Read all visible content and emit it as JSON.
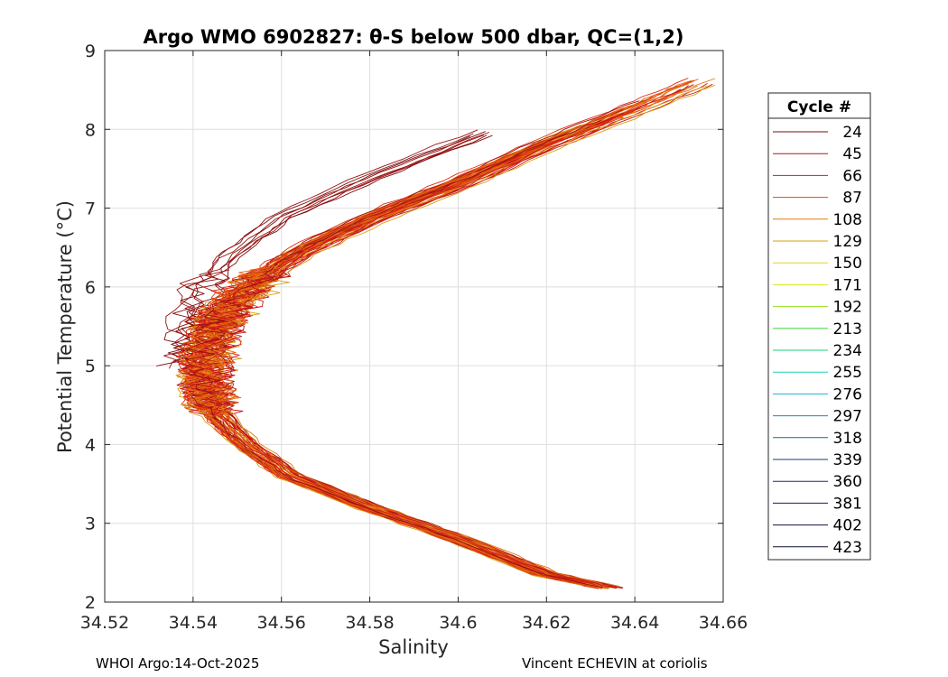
{
  "chart_data": {
    "type": "line",
    "title": "Argo WMO 6902827: θ-S below 500 dbar,  QC=(1,2)",
    "xlabel": "Salinity",
    "ylabel": "Potential Temperature (°C)",
    "xlim": [
      34.52,
      34.66
    ],
    "ylim": [
      2,
      9
    ],
    "xticks": [
      "34.52",
      "34.54",
      "34.56",
      "34.58",
      "34.6",
      "34.62",
      "34.64",
      "34.66"
    ],
    "yticks": [
      "2",
      "3",
      "4",
      "5",
      "6",
      "7",
      "8",
      "9"
    ],
    "grid": true,
    "legend_position": "right-outside",
    "legend_title": "Cycle #",
    "legend": [
      {
        "label": "24",
        "color": "#7a0e0e"
      },
      {
        "label": "45",
        "color": "#b0141a"
      },
      {
        "label": "66",
        "color": "#d11a1a"
      },
      {
        "label": "87",
        "color": "#e04a10"
      },
      {
        "label": "108",
        "color": "#e07a10"
      },
      {
        "label": "129",
        "color": "#d8a010"
      },
      {
        "label": "150",
        "color": "#e6d21a"
      },
      {
        "label": "171",
        "color": "#d6e61a"
      },
      {
        "label": "192",
        "color": "#8fe01a"
      },
      {
        "label": "213",
        "color": "#3fd83a"
      },
      {
        "label": "234",
        "color": "#1ad27a"
      },
      {
        "label": "255",
        "color": "#1ad2b4"
      },
      {
        "label": "276",
        "color": "#1ab4d2"
      },
      {
        "label": "297",
        "color": "#1a8cb4"
      },
      {
        "label": "318",
        "color": "#1a6496"
      },
      {
        "label": "339",
        "color": "#1a3c82"
      },
      {
        "label": "360",
        "color": "#1a2870"
      },
      {
        "label": "381",
        "color": "#141e5a"
      },
      {
        "label": "402",
        "color": "#101446"
      },
      {
        "label": "423",
        "color": "#0c1036"
      }
    ],
    "series_shape": {
      "description": "theta-S profiles shown as lines (salinity, potential temperature)",
      "mean_profile": [
        [
          34.637,
          2.15
        ],
        [
          34.62,
          2.35
        ],
        [
          34.6,
          2.8
        ],
        [
          34.58,
          3.2
        ],
        [
          34.562,
          3.6
        ],
        [
          34.552,
          4.0
        ],
        [
          34.545,
          4.4
        ],
        [
          34.543,
          4.7
        ],
        [
          34.543,
          5.0
        ],
        [
          34.545,
          5.4
        ],
        [
          34.548,
          5.7
        ],
        [
          34.555,
          6.1
        ],
        [
          34.565,
          6.45
        ],
        [
          34.58,
          6.85
        ],
        [
          34.6,
          7.3
        ],
        [
          34.62,
          7.8
        ],
        [
          34.64,
          8.25
        ],
        [
          34.655,
          8.6
        ]
      ],
      "upper_branch": [
        [
          34.537,
          5.0
        ],
        [
          34.538,
          5.5
        ],
        [
          34.542,
          6.0
        ],
        [
          34.548,
          6.4
        ],
        [
          34.56,
          6.9
        ],
        [
          34.58,
          7.4
        ],
        [
          34.605,
          7.95
        ]
      ],
      "num_profiles": 60
    }
  },
  "footer": {
    "left": "WHOI Argo:14-Oct-2025",
    "right": "Vincent ECHEVIN at coriolis"
  }
}
